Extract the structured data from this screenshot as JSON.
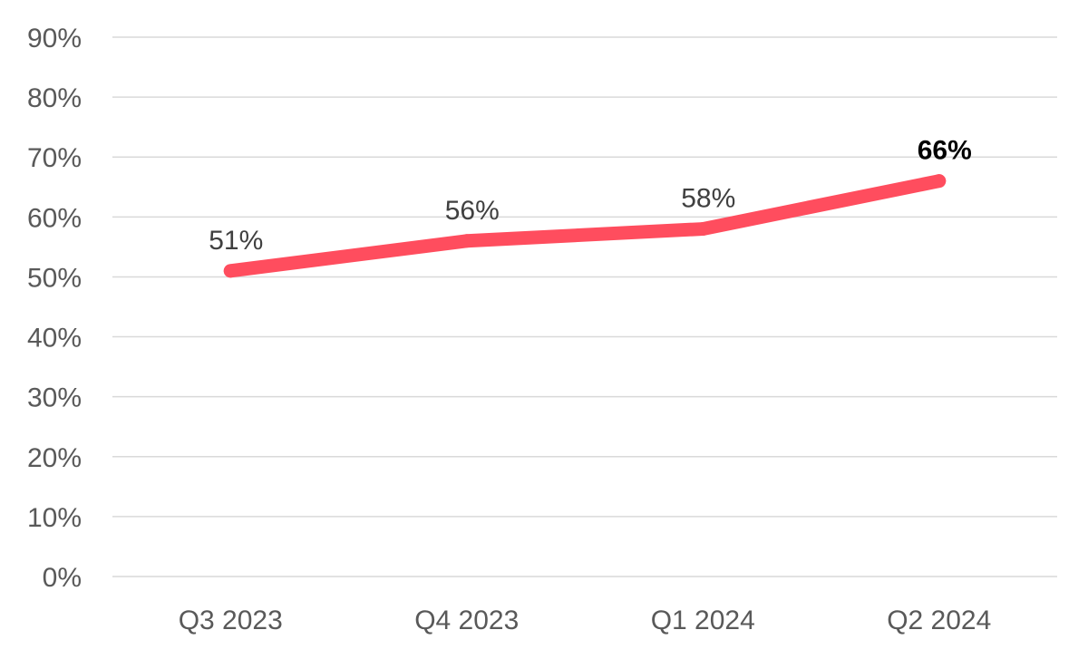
{
  "chart_data": {
    "type": "line",
    "title": "",
    "xlabel": "",
    "ylabel": "",
    "categories": [
      "Q3 2023",
      "Q4 2023",
      "Q1 2024",
      "Q2 2024"
    ],
    "series": [
      {
        "values": [
          51,
          56,
          58,
          66
        ],
        "labels": [
          "51%",
          "56%",
          "58%",
          "66%"
        ],
        "emphasized_label_index": 3,
        "color": "#ff4d5e"
      }
    ],
    "ylim": [
      0,
      90
    ],
    "y_ticks": [
      0,
      10,
      20,
      30,
      40,
      50,
      60,
      70,
      80,
      90
    ],
    "y_tick_labels": [
      "0%",
      "10%",
      "20%",
      "30%",
      "40%",
      "50%",
      "60%",
      "70%",
      "80%",
      "90%"
    ],
    "grid": true,
    "legend": "none"
  }
}
